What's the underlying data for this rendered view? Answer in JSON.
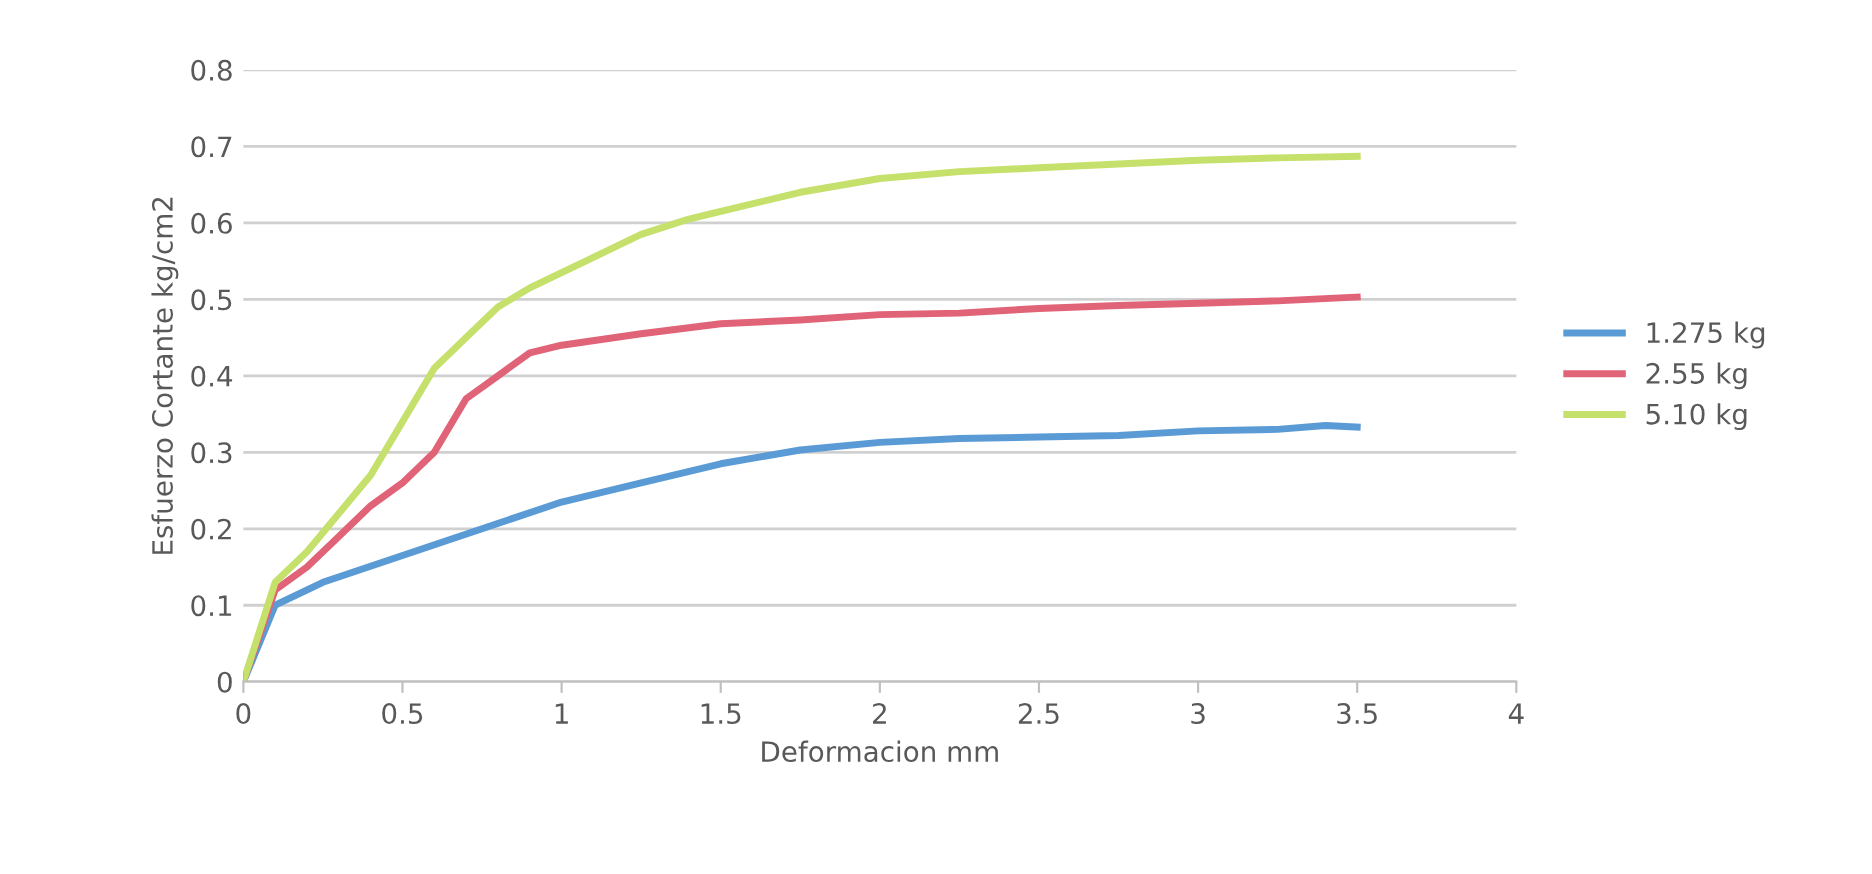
{
  "chart_data": {
    "type": "line",
    "xlabel": "Deformacion mm",
    "ylabel": "Esfuerzo Cortante kg/cm2",
    "xlim": [
      0,
      4
    ],
    "xticks": [
      0,
      0.5,
      1,
      1.5,
      2,
      2.5,
      3,
      3.5,
      4
    ],
    "ylim": [
      0,
      0.8
    ],
    "yticks": [
      0,
      0.1,
      0.2,
      0.3,
      0.4,
      0.5,
      0.6,
      0.7,
      0.8
    ],
    "grid": "y",
    "legend": "right",
    "marker": "none",
    "series": [
      {
        "name": "1.275 kg",
        "color": "#5b9bd5",
        "x": [
          0,
          0.1,
          0.25,
          0.5,
          0.75,
          1,
          1.25,
          1.5,
          1.75,
          2,
          2.25,
          2.5,
          2.75,
          3,
          3.25,
          3.4,
          3.5
        ],
        "values": [
          0,
          0.1,
          0.13,
          0.165,
          0.2,
          0.235,
          0.26,
          0.285,
          0.303,
          0.313,
          0.318,
          0.32,
          0.322,
          0.328,
          0.33,
          0.335,
          0.333
        ]
      },
      {
        "name": "2.55 kg",
        "color": "#e06377",
        "x": [
          0,
          0.1,
          0.2,
          0.3,
          0.4,
          0.5,
          0.6,
          0.7,
          0.8,
          0.9,
          1,
          1.25,
          1.5,
          1.75,
          2,
          2.25,
          2.5,
          2.75,
          3,
          3.25,
          3.5
        ],
        "values": [
          0,
          0.12,
          0.15,
          0.19,
          0.23,
          0.26,
          0.3,
          0.37,
          0.4,
          0.43,
          0.44,
          0.455,
          0.468,
          0.473,
          0.48,
          0.482,
          0.488,
          0.492,
          0.495,
          0.498,
          0.503
        ]
      },
      {
        "name": "5.10 kg",
        "color": "#c5e06b",
        "x": [
          0,
          0.1,
          0.2,
          0.3,
          0.4,
          0.5,
          0.6,
          0.7,
          0.8,
          0.9,
          1,
          1.1,
          1.25,
          1.4,
          1.5,
          1.75,
          2,
          2.25,
          2.5,
          2.75,
          3,
          3.25,
          3.5
        ],
        "values": [
          0,
          0.13,
          0.17,
          0.22,
          0.27,
          0.34,
          0.41,
          0.45,
          0.49,
          0.515,
          0.535,
          0.555,
          0.585,
          0.605,
          0.615,
          0.64,
          0.658,
          0.667,
          0.672,
          0.677,
          0.682,
          0.685,
          0.687
        ]
      }
    ]
  }
}
